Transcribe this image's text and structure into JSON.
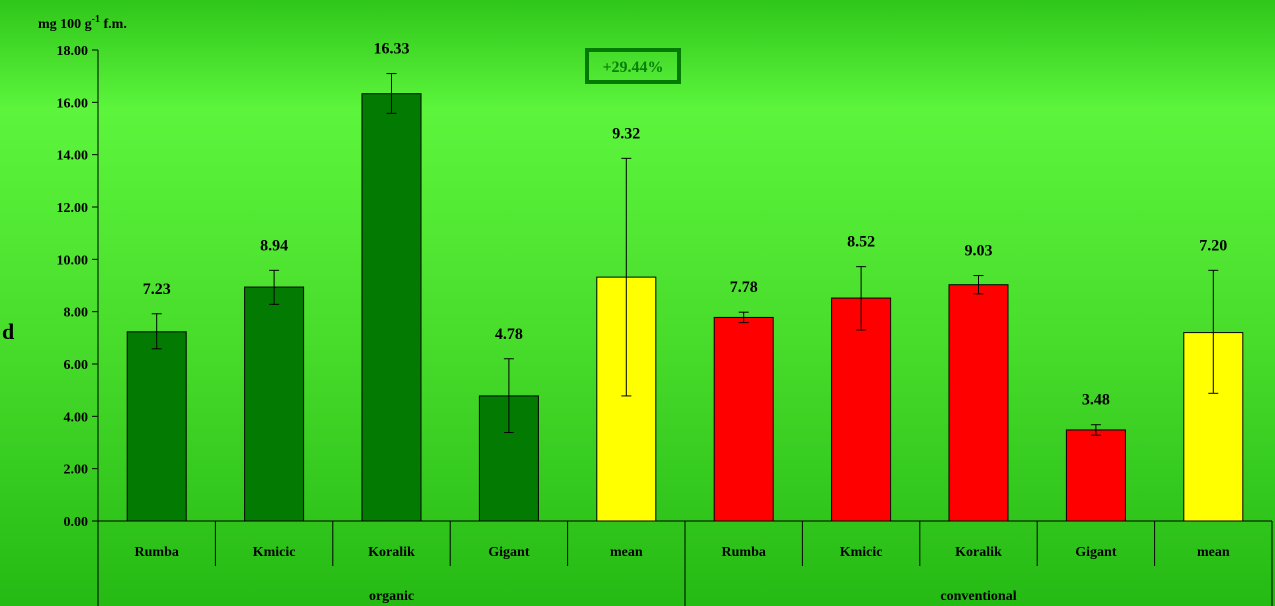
{
  "chart_data": {
    "type": "bar",
    "ylabel_unit": "mg 100 g",
    "ylabel_exp": "-1",
    "ylabel_suffix": " f.m.",
    "side_label": "d",
    "ylim": [
      0,
      18
    ],
    "yticks": [
      "0.00",
      "2.00",
      "4.00",
      "6.00",
      "8.00",
      "10.00",
      "12.00",
      "14.00",
      "16.00",
      "18.00"
    ],
    "annotation": "+29.44%",
    "groups": [
      {
        "name": "organic",
        "start": 0,
        "end": 5
      },
      {
        "name": "conventional",
        "start": 5,
        "end": 10
      }
    ],
    "bars": [
      {
        "category": "Rumba",
        "group": "organic",
        "value": 7.23,
        "label": "7.23",
        "err_low": 6.58,
        "err_high": 7.92,
        "color": "#037b03"
      },
      {
        "category": "Kmicic",
        "group": "organic",
        "value": 8.94,
        "label": "8.94",
        "err_low": 8.28,
        "err_high": 9.58,
        "color": "#037b03"
      },
      {
        "category": "Koralik",
        "group": "organic",
        "value": 16.33,
        "label": "16.33",
        "err_low": 15.58,
        "err_high": 17.1,
        "color": "#037b03"
      },
      {
        "category": "Gigant",
        "group": "organic",
        "value": 4.78,
        "label": "4.78",
        "err_low": 3.38,
        "err_high": 6.2,
        "color": "#037b03"
      },
      {
        "category": "mean",
        "group": "organic",
        "value": 9.32,
        "label": "9.32",
        "err_low": 4.78,
        "err_high": 13.86,
        "color": "#ffff00"
      },
      {
        "category": "Rumba",
        "group": "conventional",
        "value": 7.78,
        "label": "7.78",
        "err_low": 7.58,
        "err_high": 7.98,
        "color": "#ff0000"
      },
      {
        "category": "Kmicic",
        "group": "conventional",
        "value": 8.52,
        "label": "8.52",
        "err_low": 7.3,
        "err_high": 9.72,
        "color": "#ff0000"
      },
      {
        "category": "Koralik",
        "group": "conventional",
        "value": 9.03,
        "label": "9.03",
        "err_low": 8.68,
        "err_high": 9.38,
        "color": "#ff0000"
      },
      {
        "category": "Gigant",
        "group": "conventional",
        "value": 3.48,
        "label": "3.48",
        "err_low": 3.28,
        "err_high": 3.68,
        "color": "#ff0000"
      },
      {
        "category": "mean",
        "group": "conventional",
        "value": 7.2,
        "label": "7.20",
        "err_low": 4.88,
        "err_high": 9.58,
        "color": "#ffff00"
      }
    ],
    "colors": {
      "organic": "#037b03",
      "conventional": "#ff0000",
      "mean": "#ffff00",
      "annotation": "#037b03"
    }
  }
}
